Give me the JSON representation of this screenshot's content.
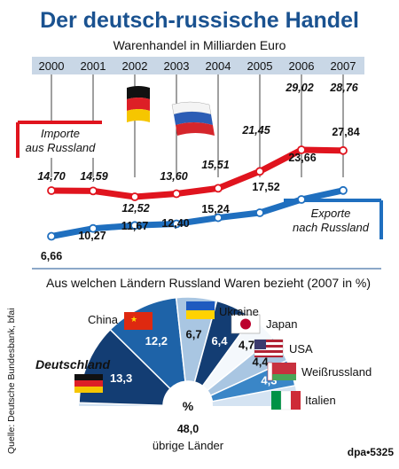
{
  "title": "Der deutsch-russische Handel",
  "subtitle": "Warenhandel in Milliarden Euro",
  "source": "Quelle: Deutsche Bundesbank, bfai",
  "agency": "dpa•5325",
  "colors": {
    "title": "#1a5290",
    "imports": "#e0141e",
    "exports": "#1f6fbf",
    "pie_dark": "#133d73",
    "pie_mid": "#1e63a8",
    "pie_light": "#a9c6e2",
    "pie_bg": "#d4e3f2"
  },
  "chart_data": [
    {
      "type": "line",
      "title": "Der deutsch-russische Handel",
      "subtitle": "Warenhandel in Milliarden Euro",
      "x": [
        "2000",
        "2001",
        "2002",
        "2003",
        "2004",
        "2005",
        "2006",
        "2007"
      ],
      "series": [
        {
          "name": "Importe aus Russland",
          "values": [
            14.7,
            14.59,
            12.52,
            13.6,
            15.51,
            21.45,
            29.02,
            28.76
          ],
          "labels": [
            "14,70",
            "14,59",
            "12,52",
            "13,60",
            "15,51",
            "21,45",
            "29,02",
            "28,76"
          ]
        },
        {
          "name": "Exporte nach Russland",
          "values": [
            6.66,
            10.27,
            11.67,
            12.4,
            15.24,
            17.52,
            23.66,
            27.84
          ],
          "labels": [
            "6,66",
            "10,27",
            "11,67",
            "12,40",
            "15,24",
            "17,52",
            "23,66",
            "27,84"
          ]
        }
      ],
      "legend_imports": [
        "Importe",
        "aus Russland"
      ],
      "legend_exports": [
        "Exporte",
        "nach Russland"
      ]
    },
    {
      "type": "pie",
      "title": "Aus welchen Ländern Russland Waren bezieht (2007 in %)",
      "center_label": "%",
      "slices": [
        {
          "name": "Deutschland",
          "value": 13.3,
          "label": "13,3"
        },
        {
          "name": "China",
          "value": 12.2,
          "label": "12,2"
        },
        {
          "name": "Ukraine",
          "value": 6.7,
          "label": "6,7"
        },
        {
          "name": "Japan",
          "value": 6.4,
          "label": "6,4"
        },
        {
          "name": "USA",
          "value": 4.7,
          "label": "4,7"
        },
        {
          "name": "Weißrussland",
          "value": 4.4,
          "label": "4,4"
        },
        {
          "name": "Italien",
          "value": 4.3,
          "label": "4,3"
        },
        {
          "name": "übrige Länder",
          "value": 48.0,
          "label": "48,0"
        }
      ]
    }
  ]
}
